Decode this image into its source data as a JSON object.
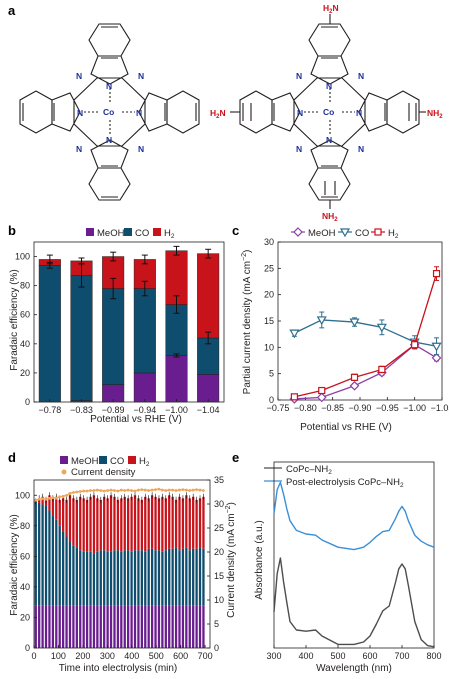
{
  "panel_labels": {
    "a": "a",
    "b": "b",
    "c": "c",
    "d": "d",
    "e": "e"
  },
  "molecules": {
    "left": {
      "metal": "Co",
      "n": "N"
    },
    "right": {
      "metal": "Co",
      "n": "N",
      "substituent": "NH",
      "substituent_sub": "2",
      "substituent_left": "H",
      "substituent_left_sub": "2",
      "substituent_left_n": "N"
    }
  },
  "colors": {
    "meoh": "#6a1d8e",
    "co": "#0f4d6e",
    "h2": "#c8131b",
    "cd": "#f0a55b",
    "blue_line": "#3a8fd8",
    "grey_line": "#4d4d4d",
    "red_text": "#c8131b",
    "n_blue": "#1d2f9c"
  },
  "chart_data": [
    {
      "id": "b",
      "type": "bar",
      "stacked": true,
      "categories": [
        "−0.78",
        "−0.83",
        "−0.89",
        "−0.94",
        "−1.00",
        "−1.04"
      ],
      "series": [
        {
          "name": "MeOH",
          "values": [
            0,
            1,
            12,
            20,
            32,
            19
          ]
        },
        {
          "name": "CO",
          "values": [
            94,
            86,
            66,
            58,
            35,
            25
          ]
        },
        {
          "name": "H",
          "name_sub": "2",
          "values": [
            4,
            10,
            22,
            20,
            37,
            58
          ]
        }
      ],
      "errors": {
        "co_top": [
          2,
          8,
          7,
          5,
          6,
          4
        ],
        "total": [
          3,
          2,
          3,
          3,
          3,
          3
        ],
        "meoh_top": [
          0,
          0,
          0,
          0,
          1,
          0
        ]
      },
      "xlabel": "Potential vs RHE (V)",
      "ylabel": "Faradaic efficiency (%)",
      "ylim": [
        0,
        110
      ],
      "yticks": [
        0,
        20,
        40,
        60,
        80,
        100
      ],
      "legend": "top"
    },
    {
      "id": "c",
      "type": "line",
      "x": [
        -0.78,
        -0.83,
        -0.89,
        -0.94,
        -1.0,
        -1.04
      ],
      "series": [
        {
          "name": "MeOH",
          "values": [
            0.2,
            0.5,
            2.7,
            5.2,
            10.5,
            8.0
          ]
        },
        {
          "name": "CO",
          "values": [
            12.7,
            15.2,
            14.8,
            13.8,
            11.0,
            10.2
          ]
        },
        {
          "name": "H",
          "name_sub": "2",
          "values": [
            0.6,
            1.8,
            4.3,
            5.8,
            10.5,
            24.0
          ]
        }
      ],
      "xlabel": "Potential vs RHE (V)",
      "ylabel": "Partial current density (mA cm",
      "ylabel_sup": "−2",
      "ylabel_end": ")",
      "xticks": [
        "−0.75",
        "−0.80",
        "−0.85",
        "−0.90",
        "−0.95",
        "−1.00",
        "−1.05"
      ],
      "yticks": [
        0,
        5,
        10,
        15,
        20,
        25,
        30
      ],
      "xlim": [
        -0.75,
        -1.05
      ],
      "ylim": [
        0,
        30
      ],
      "legend": "top"
    },
    {
      "id": "d",
      "type": "bar",
      "stacked": true,
      "meoh_constant": 28,
      "co_top": [
        96,
        95,
        94,
        93,
        90,
        87,
        84,
        80,
        76,
        73,
        70,
        67,
        66,
        64,
        63,
        63,
        63,
        62,
        63,
        64,
        64,
        63,
        63,
        64,
        64,
        63,
        64,
        64,
        63,
        64,
        64,
        64,
        63,
        65,
        65,
        64,
        64,
        63,
        64,
        65,
        65,
        66,
        64,
        65,
        66,
        64,
        65,
        65,
        66,
        65
      ],
      "total": [
        96,
        98,
        99,
        97,
        100,
        98,
        99,
        97,
        98,
        97,
        100,
        98,
        97,
        99,
        98,
        97,
        99,
        100,
        98,
        97,
        99,
        98,
        100,
        99,
        97,
        98,
        99,
        98,
        99,
        100,
        98,
        97,
        99,
        98,
        100,
        99,
        98,
        99,
        98,
        100,
        99,
        97,
        99,
        98,
        100,
        98,
        99,
        97,
        98,
        99
      ],
      "current_density": [
        30.8,
        31.0,
        31.1,
        31.0,
        31.2,
        31.3,
        31.2,
        31.5,
        31.6,
        31.8,
        32.2,
        32.4,
        32.5,
        32.6,
        32.7,
        32.7,
        32.8,
        32.8,
        32.9,
        32.8,
        32.7,
        32.8,
        32.9,
        32.8,
        32.7,
        32.9,
        32.8,
        32.9,
        32.8,
        32.7,
        32.9,
        33.0,
        32.9,
        32.8,
        32.9,
        33.0,
        33.1,
        32.9,
        32.8,
        32.9,
        32.9,
        32.8,
        32.9,
        33.0,
        32.9,
        32.8,
        32.9,
        33.0,
        32.9,
        32.8
      ],
      "series_names": {
        "meoh": "MeOH",
        "co": "CO",
        "h2": "H",
        "h2_sub": "2",
        "cd": "Current density"
      },
      "xlabel": "Time into electrolysis (min)",
      "ylabel": "Faradaic efficiency (%)",
      "y2label": "Current density (mA cm",
      "y2label_sup": "−2",
      "y2label_end": ")",
      "xticks": [
        0,
        100,
        200,
        300,
        400,
        500,
        600,
        700
      ],
      "xlim": [
        0,
        720
      ],
      "yticks": [
        0,
        20,
        40,
        60,
        80,
        100
      ],
      "ylim": [
        0,
        110
      ],
      "y2ticks": [
        0,
        5,
        10,
        15,
        20,
        25,
        30,
        35
      ],
      "y2lim": [
        0,
        35
      ],
      "legend": "top"
    },
    {
      "id": "e",
      "type": "line",
      "series": [
        {
          "name": "CoPc–NH",
          "name_sub": "2",
          "x": [
            300,
            310,
            320,
            330,
            340,
            350,
            370,
            400,
            430,
            450,
            500,
            550,
            580,
            600,
            620,
            640,
            660,
            680,
            690,
            700,
            710,
            720,
            740,
            760,
            780,
            800
          ],
          "values": [
            0.3,
            0.62,
            0.75,
            0.55,
            0.38,
            0.22,
            0.15,
            0.14,
            0.15,
            0.1,
            0.03,
            0.03,
            0.05,
            0.1,
            0.2,
            0.31,
            0.35,
            0.55,
            0.66,
            0.7,
            0.66,
            0.52,
            0.22,
            0.07,
            0.02,
            0.01
          ]
        },
        {
          "name": "Post-electrolysis CoPc–NH",
          "name_sub": "2",
          "x": [
            300,
            310,
            320,
            330,
            340,
            350,
            370,
            400,
            430,
            450,
            500,
            550,
            580,
            600,
            620,
            640,
            660,
            680,
            690,
            700,
            710,
            720,
            740,
            760,
            780,
            800
          ],
          "values": [
            1.12,
            1.32,
            1.38,
            1.28,
            1.16,
            1.06,
            0.98,
            0.95,
            0.94,
            0.9,
            0.84,
            0.82,
            0.84,
            0.88,
            0.93,
            0.97,
            0.98,
            1.08,
            1.14,
            1.18,
            1.14,
            1.06,
            0.94,
            0.89,
            0.86,
            0.84
          ]
        }
      ],
      "xlabel": "Wavelength (nm)",
      "ylabel": "Absorbance (a.u.)",
      "xticks": [
        300,
        400,
        500,
        600,
        700,
        800
      ],
      "xlim": [
        300,
        800
      ],
      "ylim": [
        0,
        1.55
      ],
      "legend": "top-left"
    }
  ],
  "axes_text": {
    "b_x": "Potential vs RHE (V)",
    "b_y": "Faradaic efficiency (%)",
    "c_x": "Potential vs RHE (V)",
    "d_x": "Time into electrolysis (min)",
    "d_y": "Faradaic efficiency (%)",
    "e_x": "Wavelength (nm)",
    "e_y": "Absorbance (a.u.)"
  }
}
